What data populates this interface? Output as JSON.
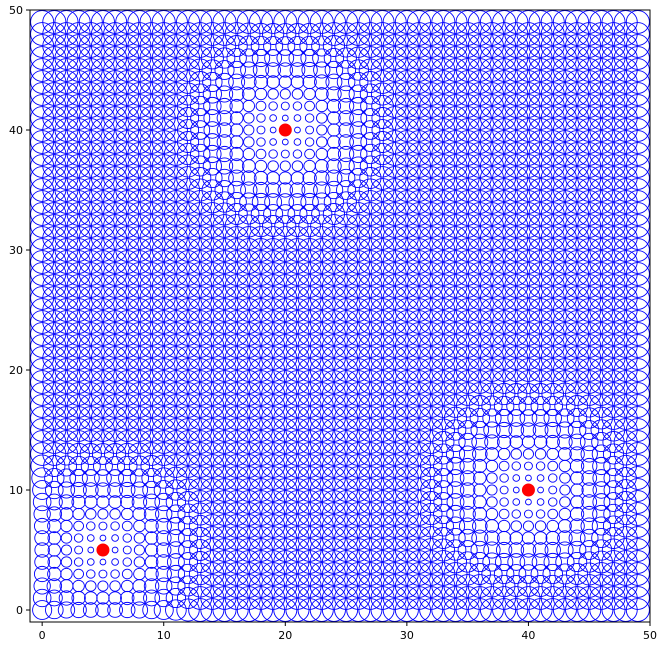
{
  "chart_data": {
    "type": "scatter",
    "title": "",
    "xlabel": "",
    "ylabel": "",
    "xlim": [
      -1,
      50
    ],
    "ylim": [
      -1,
      50
    ],
    "x_ticks": [
      0,
      10,
      20,
      30,
      40,
      50
    ],
    "y_ticks": [
      0,
      10,
      20,
      30,
      40,
      50
    ],
    "x_tick_labels": [
      "0",
      "10",
      "20",
      "30",
      "40",
      "50"
    ],
    "y_tick_labels": [
      "0",
      "10",
      "20",
      "30",
      "40",
      "50"
    ],
    "grid": false,
    "grid_points": {
      "description_x_range": [
        0,
        49
      ],
      "description_y_range": [
        0,
        49
      ],
      "marker": "hollow circle",
      "edge_color": "#0000ff",
      "circle_diameter_data_units_by_region": {
        "lower_left_near_origin": "small, increasing with distance from sources",
        "far_field": 1.8
      }
    },
    "sources": {
      "name": "",
      "marker": "filled circle",
      "color": "#ff0000",
      "points": [
        {
          "x": 5,
          "y": 5
        },
        {
          "x": 20,
          "y": 40
        },
        {
          "x": 40,
          "y": 10
        }
      ]
    }
  }
}
